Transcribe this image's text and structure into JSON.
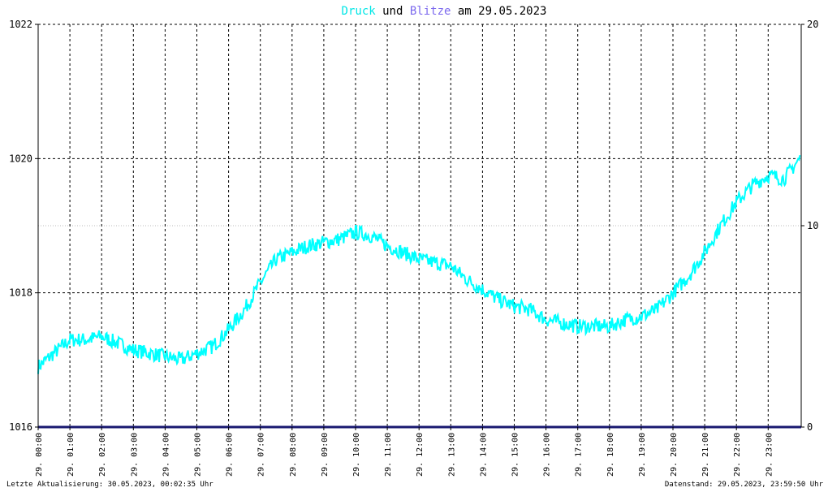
{
  "title": {
    "part1": "Druck",
    "part2": " und ",
    "part3": "Blitze",
    "part4": " am 29.05.2023",
    "color1": "#00e6e6",
    "color3": "#7b68ee",
    "color_text": "#000000"
  },
  "footer": {
    "left": "Letzte Aktualisierung: 30.05.2023, 00:02:35 Uhr",
    "right": "Datenstand: 29.05.2023, 23:59:50 Uhr"
  },
  "chart_data": {
    "type": "line",
    "title": "Druck und Blitze am 29.05.2023",
    "xlabel": "",
    "ylabel": "",
    "grid": true,
    "x_ticks": [
      "29. 00:00",
      "29. 01:00",
      "29. 02:00",
      "29. 03:00",
      "29. 04:00",
      "29. 05:00",
      "29. 06:00",
      "29. 07:00",
      "29. 08:00",
      "29. 09:00",
      "29. 10:00",
      "29. 11:00",
      "29. 12:00",
      "29. 13:00",
      "29. 14:00",
      "29. 15:00",
      "29. 16:00",
      "29. 17:00",
      "29. 18:00",
      "29. 19:00",
      "29. 20:00",
      "29. 21:00",
      "29. 22:00",
      "29. 23:00"
    ],
    "y_left": {
      "range": [
        1016,
        1022
      ],
      "ticks": [
        "1016",
        "1018",
        "1020",
        "1022"
      ]
    },
    "y_right": {
      "range": [
        0,
        20
      ],
      "ticks": [
        "0",
        "10",
        "20"
      ]
    },
    "series": [
      {
        "name": "Druck",
        "axis": "left",
        "color": "#00ffff",
        "x_hours": [
          0,
          0.5,
          1,
          1.5,
          2,
          2.5,
          3,
          3.5,
          4,
          4.5,
          5,
          5.5,
          6,
          6.5,
          7,
          7.5,
          8,
          8.5,
          9,
          9.5,
          10,
          10.5,
          11,
          11.5,
          12,
          12.5,
          13,
          13.5,
          14,
          14.5,
          15,
          15.5,
          16,
          16.5,
          17,
          17.5,
          18,
          18.5,
          19,
          19.5,
          20,
          20.5,
          21,
          21.5,
          22,
          22.5,
          23,
          23.5,
          24
        ],
        "values": [
          1016.9,
          1017.1,
          1017.3,
          1017.3,
          1017.35,
          1017.25,
          1017.15,
          1017.1,
          1017.05,
          1017.0,
          1017.1,
          1017.2,
          1017.45,
          1017.75,
          1018.15,
          1018.5,
          1018.6,
          1018.7,
          1018.75,
          1018.8,
          1018.9,
          1018.85,
          1018.7,
          1018.6,
          1018.5,
          1018.45,
          1018.4,
          1018.2,
          1018.05,
          1017.9,
          1017.8,
          1017.75,
          1017.6,
          1017.55,
          1017.5,
          1017.5,
          1017.5,
          1017.6,
          1017.65,
          1017.75,
          1018.0,
          1018.25,
          1018.6,
          1019.0,
          1019.35,
          1019.6,
          1019.75,
          1019.7,
          1020.0
        ]
      },
      {
        "name": "Blitze",
        "axis": "right",
        "color": "#191970",
        "x_hours": [
          0,
          24
        ],
        "values": [
          0,
          0
        ]
      }
    ]
  }
}
